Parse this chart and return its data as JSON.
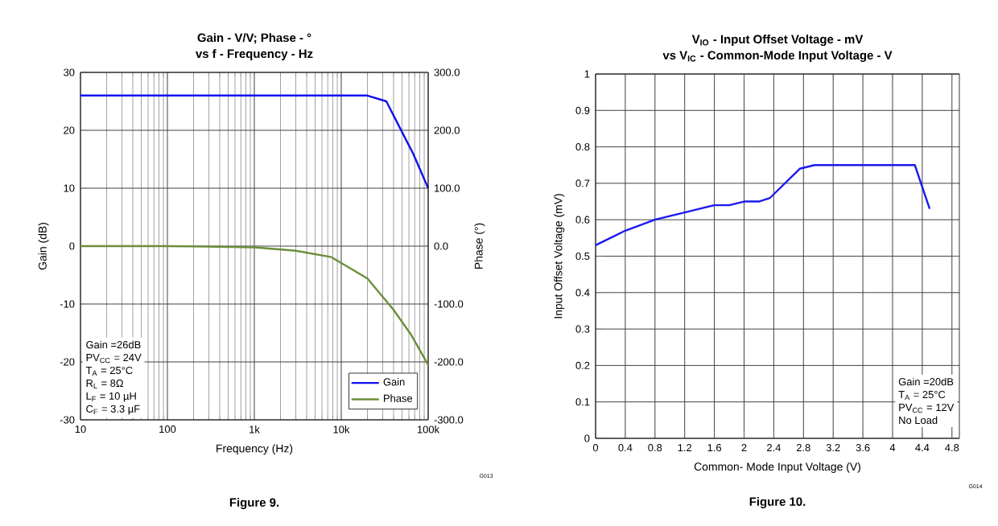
{
  "chart_data": [
    {
      "type": "line",
      "title": "Gain - V/V; Phase - °",
      "subtitle": "vs f - Frequency - Hz",
      "xlabel": "Frequency (Hz)",
      "ylabel": "Gain (dB)",
      "y2label": "Phase (°)",
      "log": "x",
      "grid": true,
      "legend": "bottom right",
      "xlim": [
        10,
        100000
      ],
      "xticks": [
        10,
        100,
        {
          "value": 1000,
          "label": "1k"
        },
        {
          "value": 10000,
          "label": "10k"
        },
        {
          "value": 100000,
          "label": "100k"
        }
      ],
      "ylim": [
        -30,
        30
      ],
      "yticks": [
        -30,
        -20,
        -10,
        0,
        10,
        20,
        30
      ],
      "y2lim": [
        -300,
        300
      ],
      "y2ticks": [
        {
          "value": -300,
          "label": "-300.0"
        },
        {
          "value": -200,
          "label": "-200.0"
        },
        {
          "value": -100,
          "label": "-100.0"
        },
        {
          "value": 0,
          "label": "0.0"
        },
        {
          "value": 100,
          "label": "100.0"
        },
        {
          "value": 200,
          "label": "200.0"
        },
        {
          "value": 300,
          "label": "300.0"
        }
      ],
      "series": [
        {
          "name": "Gain",
          "color": "#1010f0",
          "x": [
            10,
            100,
            1000,
            10000,
            20000,
            33000,
            47000,
            67000,
            100000
          ],
          "values": [
            26,
            26,
            26,
            26,
            26,
            25,
            20.5,
            16,
            10
          ]
        },
        {
          "name": "Phase",
          "color": "#6b8e3a",
          "axis": "y2",
          "x": [
            10,
            100,
            1000,
            3000,
            7700,
            20000,
            40000,
            63000,
            100000
          ],
          "values": [
            0,
            0,
            -2,
            -8,
            -19,
            -56,
            -110,
            -152,
            -205
          ]
        }
      ],
      "annotations": [
        "Gain =26dB",
        "PV$_{CC}$ = 24V",
        "T$_{A}$ = 25°C",
        "R$_{L}$ = 8Ω",
        "L$_{F}$ = 10 µH",
        "C$_{F}$ = 3.3 µF",
        "G013",
        "Figure 9."
      ]
    },
    {
      "type": "line",
      "title": "V$_{IO}$ - Input Offset Voltage - mV",
      "subtitle": "vs V$_{IC}$ - Common-Mode Input Voltage - V",
      "xlabel": "Common- Mode Input Voltage (V)",
      "ylabel": "Input Offset Voltage (mV)",
      "grid": true,
      "xlim": [
        0,
        4.9
      ],
      "xticks": [
        0,
        0.4,
        0.8,
        1.2,
        1.6,
        2,
        2.4,
        2.8,
        3.2,
        3.6,
        4,
        4.4,
        4.8
      ],
      "ylim": [
        0,
        1
      ],
      "yticks": [
        0,
        0.1,
        0.2,
        0.3,
        0.4,
        0.5,
        0.6,
        0.7,
        0.8,
        0.9,
        1
      ],
      "series": [
        {
          "color": "#1a1af0",
          "x": [
            0,
            0.4,
            0.8,
            1.2,
            1.6,
            1.8,
            2.0,
            2.2,
            2.35,
            2.75,
            2.95,
            4.3,
            4.5
          ],
          "values": [
            0.53,
            0.57,
            0.6,
            0.62,
            0.64,
            0.64,
            0.65,
            0.65,
            0.66,
            0.74,
            0.75,
            0.75,
            0.63
          ]
        }
      ],
      "annotations": [
        "Gain =20dB",
        "T$_{A}$ = 25°C",
        "PV$_{CC}$ = 12V",
        "No Load",
        "G014",
        "Figure 10."
      ]
    }
  ]
}
